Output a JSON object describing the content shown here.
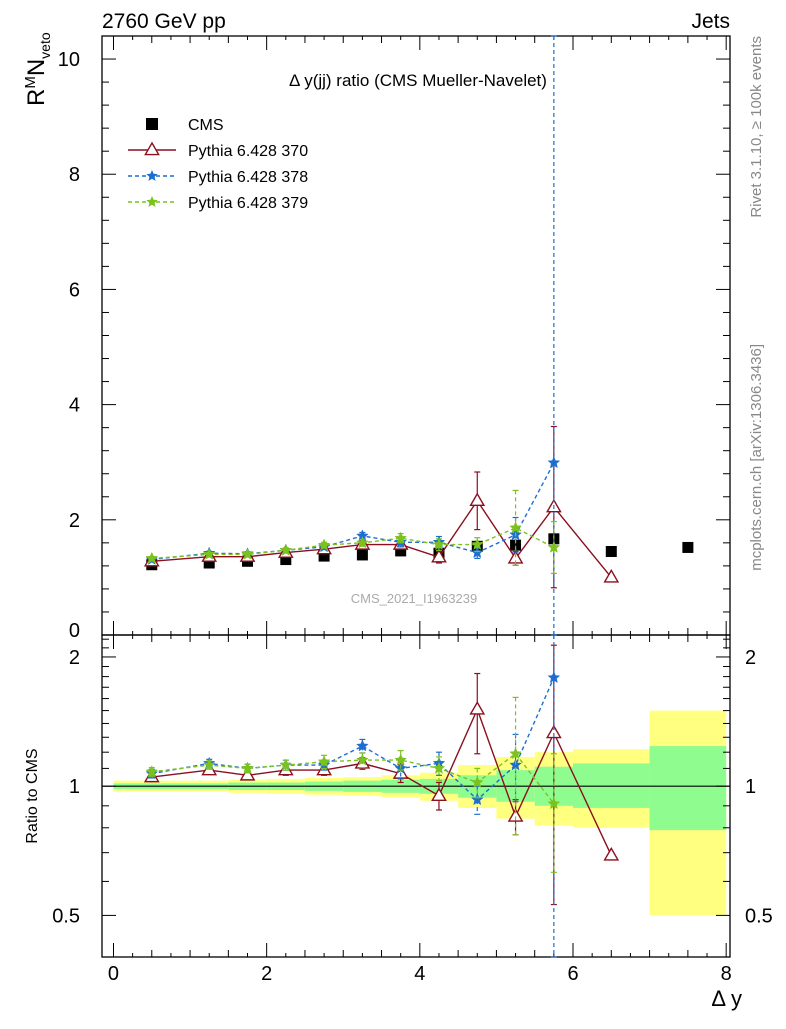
{
  "header": {
    "left_text": "2760 GeV pp",
    "right_text": "Jets"
  },
  "side_labels": {
    "rivet": "Rivet 3.1.10, ≥ 100k events",
    "mcplots": "mcplots.cern.ch [arXiv:1306.3436]"
  },
  "watermark": "CMS_2021_I1963239",
  "chart_data": {
    "type": "scatter",
    "title": "Δ y(jj) ratio (CMS Mueller-Navelet)",
    "xlabel": "Δ y",
    "ylabel_main": "R^M N_veto",
    "ylabel_ratio": "Ratio to CMS",
    "xlim": [
      -0.15,
      8.05
    ],
    "ylim_main": [
      0,
      10.4
    ],
    "ylim_ratio": [
      0.4,
      2.25
    ],
    "ratio_log_scale": true,
    "x_ticks": [
      "0",
      "2",
      "4",
      "6",
      "8"
    ],
    "main_y_ticks": [
      "0",
      "2",
      "4",
      "6",
      "8",
      "10"
    ],
    "ratio_y_ticks": [
      "0.5",
      "1",
      "2"
    ],
    "legend_placement": "top-left",
    "colors": {
      "data": "#000000",
      "p370": "#8b0f1f",
      "p378": "#1c6fd1",
      "p379": "#7cc21d",
      "band_outer": "#ffff80",
      "band_inner": "#8ffc8f"
    },
    "data": {
      "name": "CMS",
      "x": [
        0.5,
        1.25,
        1.75,
        2.25,
        2.75,
        3.25,
        3.75,
        4.25,
        4.75,
        5.25,
        5.75,
        6.5,
        7.5
      ],
      "y": [
        1.22,
        1.25,
        1.28,
        1.31,
        1.37,
        1.39,
        1.46,
        1.42,
        1.54,
        1.56,
        1.67,
        1.45,
        1.52
      ]
    },
    "uncertainty_bands": {
      "x_edges": [
        0.0,
        1.0,
        1.5,
        2.0,
        2.5,
        3.0,
        3.5,
        4.0,
        4.5,
        5.0,
        5.5,
        6.0,
        7.0,
        8.0
      ],
      "stat_lo": [
        0.985,
        0.985,
        0.98,
        0.98,
        0.975,
        0.97,
        0.965,
        0.96,
        0.94,
        0.92,
        0.9,
        0.89,
        0.79
      ],
      "stat_hi": [
        1.015,
        1.015,
        1.02,
        1.02,
        1.025,
        1.03,
        1.035,
        1.04,
        1.06,
        1.09,
        1.11,
        1.13,
        1.24
      ],
      "total_lo": [
        0.97,
        0.97,
        0.965,
        0.96,
        0.955,
        0.95,
        0.94,
        0.925,
        0.89,
        0.84,
        0.81,
        0.8,
        0.5
      ],
      "total_hi": [
        1.03,
        1.03,
        1.035,
        1.04,
        1.045,
        1.05,
        1.06,
        1.075,
        1.12,
        1.17,
        1.2,
        1.22,
        1.5
      ]
    },
    "series": [
      {
        "name": "Pythia 6.428 370",
        "x": [
          0.5,
          1.25,
          1.75,
          2.25,
          2.75,
          3.25,
          3.75,
          4.25,
          4.75,
          5.25,
          5.75,
          6.5
        ],
        "y": [
          1.28,
          1.36,
          1.36,
          1.43,
          1.49,
          1.57,
          1.57,
          1.35,
          2.33,
          1.33,
          2.22,
          1.0
        ],
        "err": [
          0.03,
          0.03,
          0.03,
          0.04,
          0.04,
          0.05,
          0.07,
          0.1,
          0.5,
          0.12,
          1.4,
          0.0
        ],
        "ratio": [
          1.05,
          1.09,
          1.06,
          1.09,
          1.09,
          1.13,
          1.07,
          0.95,
          1.51,
          0.85,
          1.33,
          0.69
        ],
        "ratio_err": [
          0.025,
          0.025,
          0.025,
          0.03,
          0.03,
          0.035,
          0.05,
          0.07,
          0.32,
          0.08,
          0.8,
          0.0
        ]
      },
      {
        "name": "Pythia 6.428 378",
        "x": [
          0.5,
          1.25,
          1.75,
          2.25,
          2.75,
          3.25,
          3.75,
          4.25,
          4.75,
          5.25,
          5.75
        ],
        "y": [
          1.31,
          1.42,
          1.41,
          1.47,
          1.53,
          1.72,
          1.61,
          1.61,
          1.43,
          1.74,
          2.99
        ],
        "err": [
          0.03,
          0.03,
          0.03,
          0.04,
          0.04,
          0.06,
          0.08,
          0.1,
          0.1,
          0.3,
          10.0
        ],
        "ratio": [
          1.07,
          1.13,
          1.1,
          1.12,
          1.12,
          1.24,
          1.1,
          1.13,
          0.93,
          1.12,
          1.79
        ],
        "ratio_err": [
          0.025,
          0.025,
          0.025,
          0.03,
          0.03,
          0.045,
          0.06,
          0.07,
          0.07,
          0.2,
          6.0
        ]
      },
      {
        "name": "Pythia 6.428 379",
        "x": [
          0.5,
          1.25,
          1.75,
          2.25,
          2.75,
          3.25,
          3.75,
          4.25,
          4.75,
          5.25,
          5.75
        ],
        "y": [
          1.33,
          1.4,
          1.4,
          1.47,
          1.56,
          1.6,
          1.68,
          1.57,
          1.57,
          1.86,
          1.52
        ],
        "err": [
          0.03,
          0.03,
          0.03,
          0.04,
          0.05,
          0.06,
          0.08,
          0.1,
          0.12,
          0.65,
          0.45
        ],
        "ratio": [
          1.08,
          1.12,
          1.1,
          1.12,
          1.14,
          1.15,
          1.15,
          1.1,
          1.02,
          1.19,
          0.91
        ],
        "ratio_err": [
          0.025,
          0.025,
          0.025,
          0.03,
          0.04,
          0.045,
          0.06,
          0.07,
          0.08,
          0.42,
          0.28
        ]
      }
    ]
  }
}
